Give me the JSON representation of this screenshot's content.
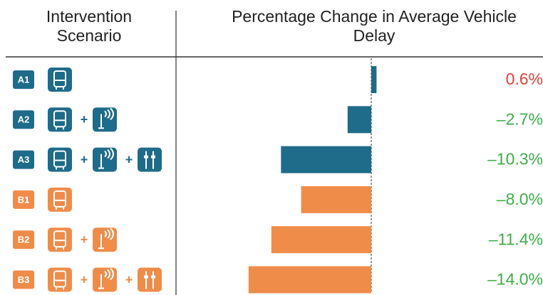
{
  "chart_data": {
    "type": "bar",
    "headers": [
      "Intervention Scenario",
      "Percentage Change in Average Vehicle Delay"
    ],
    "categories": [
      "A1",
      "A2",
      "A3",
      "B1",
      "B2",
      "B3"
    ],
    "values": [
      0.6,
      -2.7,
      -10.3,
      -8.0,
      -11.4,
      -14.0
    ],
    "value_labels": [
      "0.6%",
      "–2.7%",
      "–10.3%",
      "–8.0%",
      "–11.4%",
      "–14.0%"
    ],
    "colors": [
      "#1e6b8a",
      "#1e6b8a",
      "#1e6b8a",
      "#ef8c4a",
      "#ef8c4a",
      "#ef8c4a"
    ],
    "label_colors": [
      "#e2403f",
      "#3fae49",
      "#3fae49",
      "#3fae49",
      "#3fae49",
      "#3fae49"
    ]
  }
}
